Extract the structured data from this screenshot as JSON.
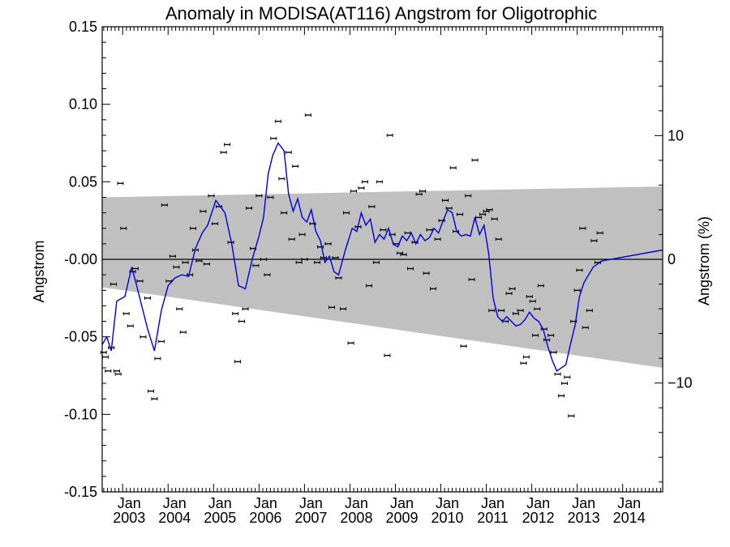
{
  "chart_data": {
    "type": "scatter",
    "title": "Anomaly in MODISA(AT116) Angstrom for Oligotrophic",
    "ylabel": "Angstrom",
    "ylabel_right": "Angstrom (%)",
    "xlim": [
      2002.55,
      2014.88
    ],
    "ylim": [
      -0.15,
      0.15
    ],
    "ylim_right": [
      -18.8,
      18.8
    ],
    "x_tick_years": [
      2003,
      2004,
      2005,
      2006,
      2007,
      2008,
      2009,
      2010,
      2011,
      2012,
      2013,
      2014
    ],
    "x_tick_labels": [
      "Jan",
      "Jan",
      "Jan",
      "Jan",
      "Jan",
      "Jan",
      "Jan",
      "Jan",
      "Jan",
      "Jan",
      "Jan",
      "Jan"
    ],
    "x_year_labels": [
      "2003",
      "2004",
      "2005",
      "2006",
      "2007",
      "2008",
      "2009",
      "2010",
      "2011",
      "2012",
      "2013",
      "2014"
    ],
    "y_ticks": [
      0.15,
      0.1,
      0.05,
      0.0,
      -0.05,
      -0.1,
      -0.15
    ],
    "y_tick_labels": [
      "0.15",
      "0.10",
      "0.05",
      "-0.00",
      "-0.05",
      "-0.10",
      "-0.15"
    ],
    "y_right_ticks": [
      10,
      0,
      -10
    ],
    "y_right_tick_labels": [
      "10",
      "0",
      "−10"
    ],
    "zero_line": 0.0,
    "band": {
      "color": "#c0c0c0",
      "upper": [
        [
          2002.55,
          0.04
        ],
        [
          2014.88,
          0.047
        ]
      ],
      "lower": [
        [
          2002.55,
          -0.018
        ],
        [
          2014.88,
          -0.07
        ]
      ]
    },
    "points": [
      [
        2002.58,
        -0.06
      ],
      [
        2002.62,
        -0.063
      ],
      [
        2002.68,
        -0.072
      ],
      [
        2002.75,
        -0.057
      ],
      [
        2002.8,
        -0.016
      ],
      [
        2002.87,
        -0.072
      ],
      [
        2002.9,
        -0.074
      ],
      [
        2002.95,
        0.049
      ],
      [
        2003.02,
        0.02
      ],
      [
        2003.08,
        -0.035
      ],
      [
        2003.17,
        -0.043
      ],
      [
        2003.22,
        -0.008
      ],
      [
        2003.28,
        -0.006
      ],
      [
        2003.38,
        -0.014
      ],
      [
        2003.45,
        -0.05
      ],
      [
        2003.55,
        -0.025
      ],
      [
        2003.62,
        -0.085
      ],
      [
        2003.7,
        -0.09
      ],
      [
        2003.77,
        -0.064
      ],
      [
        2003.85,
        -0.053
      ],
      [
        2003.92,
        0.035
      ],
      [
        2004.02,
        -0.014
      ],
      [
        2004.1,
        0.002
      ],
      [
        2004.18,
        -0.005
      ],
      [
        2004.25,
        -0.032
      ],
      [
        2004.33,
        -0.047
      ],
      [
        2004.38,
        -0.002
      ],
      [
        2004.48,
        -0.01
      ],
      [
        2004.55,
        0.02
      ],
      [
        2004.6,
        0.006
      ],
      [
        2004.68,
        -0.001
      ],
      [
        2004.77,
        0.031
      ],
      [
        2004.85,
        -0.003
      ],
      [
        2004.95,
        0.041
      ],
      [
        2005.03,
        0.023
      ],
      [
        2005.12,
        0.034
      ],
      [
        2005.22,
        0.069
      ],
      [
        2005.3,
        0.074
      ],
      [
        2005.38,
        0.011
      ],
      [
        2005.48,
        -0.035
      ],
      [
        2005.53,
        -0.066
      ],
      [
        2005.62,
        -0.04
      ],
      [
        2005.7,
        -0.032
      ],
      [
        2005.78,
        0.033
      ],
      [
        2005.87,
        0.007
      ],
      [
        2005.93,
        -0.004
      ],
      [
        2006.0,
        0.041
      ],
      [
        2006.1,
        0.0
      ],
      [
        2006.18,
        -0.01
      ],
      [
        2006.25,
        0.04
      ],
      [
        2006.32,
        0.078
      ],
      [
        2006.42,
        0.089
      ],
      [
        2006.5,
        0.052
      ],
      [
        2006.55,
        0.03
      ],
      [
        2006.65,
        0.069
      ],
      [
        2006.72,
        0.013
      ],
      [
        2006.8,
        0.06
      ],
      [
        2006.88,
        -0.002
      ],
      [
        2006.95,
        0.016
      ],
      [
        2007.0,
        0.0
      ],
      [
        2007.08,
        0.093
      ],
      [
        2007.18,
        0.023
      ],
      [
        2007.28,
        -0.002
      ],
      [
        2007.35,
        0.008
      ],
      [
        2007.42,
        0.001
      ],
      [
        2007.52,
        0.01
      ],
      [
        2007.6,
        -0.031
      ],
      [
        2007.68,
        0.001
      ],
      [
        2007.75,
        -0.012
      ],
      [
        2007.85,
        -0.032
      ],
      [
        2007.92,
        0.03
      ],
      [
        2008.02,
        -0.054
      ],
      [
        2008.08,
        0.044
      ],
      [
        2008.18,
        0.021
      ],
      [
        2008.25,
        0.046
      ],
      [
        2008.33,
        0.05
      ],
      [
        2008.42,
        -0.017
      ],
      [
        2008.48,
        0.034
      ],
      [
        2008.58,
        -0.002
      ],
      [
        2008.65,
        0.05
      ],
      [
        2008.73,
        0.019
      ],
      [
        2008.82,
        -0.062
      ],
      [
        2008.88,
        0.08
      ],
      [
        2008.93,
        0.016
      ],
      [
        2009.02,
        0.01
      ],
      [
        2009.1,
        0.004
      ],
      [
        2009.18,
        0.003
      ],
      [
        2009.27,
        0.017
      ],
      [
        2009.33,
        -0.006
      ],
      [
        2009.43,
        0.011
      ],
      [
        2009.52,
        0.042
      ],
      [
        2009.6,
        0.044
      ],
      [
        2009.68,
        -0.009
      ],
      [
        2009.75,
        0.019
      ],
      [
        2009.83,
        -0.019
      ],
      [
        2009.93,
        0.013
      ],
      [
        2010.02,
        0.025
      ],
      [
        2010.1,
        0.038
      ],
      [
        2010.18,
        0.033
      ],
      [
        2010.27,
        0.059
      ],
      [
        2010.33,
        0.018
      ],
      [
        2010.42,
        0.029
      ],
      [
        2010.5,
        -0.056
      ],
      [
        2010.6,
        0.041
      ],
      [
        2010.68,
        -0.013
      ],
      [
        2010.75,
        0.064
      ],
      [
        2010.83,
        0.027
      ],
      [
        2010.92,
        0.029
      ],
      [
        2011.0,
        0.031
      ],
      [
        2011.07,
        0.032
      ],
      [
        2011.12,
        -0.033
      ],
      [
        2011.18,
        0.026
      ],
      [
        2011.27,
        0.013
      ],
      [
        2011.33,
        -0.033
      ],
      [
        2011.42,
        -0.04
      ],
      [
        2011.5,
        -0.022
      ],
      [
        2011.57,
        -0.019
      ],
      [
        2011.65,
        -0.035
      ],
      [
        2011.75,
        -0.033
      ],
      [
        2011.82,
        -0.067
      ],
      [
        2011.88,
        -0.063
      ],
      [
        2011.95,
        -0.024
      ],
      [
        2012.02,
        -0.027
      ],
      [
        2012.08,
        -0.049
      ],
      [
        2012.12,
        -0.032
      ],
      [
        2012.2,
        -0.017
      ],
      [
        2012.27,
        -0.045
      ],
      [
        2012.33,
        -0.052
      ],
      [
        2012.42,
        -0.049
      ],
      [
        2012.48,
        -0.06
      ],
      [
        2012.57,
        -0.074
      ],
      [
        2012.65,
        -0.088
      ],
      [
        2012.72,
        -0.08
      ],
      [
        2012.78,
        -0.076
      ],
      [
        2012.87,
        -0.101
      ],
      [
        2012.92,
        -0.04
      ],
      [
        2013.0,
        -0.02
      ],
      [
        2013.05,
        -0.007
      ],
      [
        2013.12,
        0.02
      ],
      [
        2013.18,
        -0.044
      ],
      [
        2013.27,
        -0.033
      ],
      [
        2013.37,
        0.012
      ],
      [
        2013.45,
        -0.002
      ],
      [
        2013.5,
        0.017
      ]
    ],
    "line": [
      [
        2002.55,
        -0.055
      ],
      [
        2002.65,
        -0.05
      ],
      [
        2002.75,
        -0.059
      ],
      [
        2002.87,
        -0.027
      ],
      [
        2003.05,
        -0.024
      ],
      [
        2003.2,
        -0.005
      ],
      [
        2003.3,
        -0.016
      ],
      [
        2003.55,
        -0.045
      ],
      [
        2003.7,
        -0.059
      ],
      [
        2003.85,
        -0.033
      ],
      [
        2004.0,
        -0.017
      ],
      [
        2004.15,
        -0.012
      ],
      [
        2004.3,
        -0.01
      ],
      [
        2004.45,
        -0.011
      ],
      [
        2004.6,
        0.007
      ],
      [
        2004.75,
        0.017
      ],
      [
        2004.87,
        0.022
      ],
      [
        2005.05,
        0.038
      ],
      [
        2005.15,
        0.034
      ],
      [
        2005.25,
        0.03
      ],
      [
        2005.4,
        0.01
      ],
      [
        2005.55,
        -0.017
      ],
      [
        2005.7,
        -0.019
      ],
      [
        2005.85,
        0.0
      ],
      [
        2006.0,
        0.015
      ],
      [
        2006.1,
        0.027
      ],
      [
        2006.2,
        0.055
      ],
      [
        2006.3,
        0.067
      ],
      [
        2006.42,
        0.075
      ],
      [
        2006.55,
        0.07
      ],
      [
        2006.65,
        0.042
      ],
      [
        2006.75,
        0.031
      ],
      [
        2006.85,
        0.039
      ],
      [
        2006.95,
        0.027
      ],
      [
        2007.05,
        0.024
      ],
      [
        2007.15,
        0.032
      ],
      [
        2007.25,
        0.018
      ],
      [
        2007.35,
        0.012
      ],
      [
        2007.45,
        -0.002
      ],
      [
        2007.55,
        0.002
      ],
      [
        2007.65,
        -0.008
      ],
      [
        2007.75,
        -0.01
      ],
      [
        2007.9,
        0.006
      ],
      [
        2008.05,
        0.02
      ],
      [
        2008.15,
        0.018
      ],
      [
        2008.25,
        0.03
      ],
      [
        2008.35,
        0.022
      ],
      [
        2008.45,
        0.026
      ],
      [
        2008.55,
        0.011
      ],
      [
        2008.65,
        0.016
      ],
      [
        2008.75,
        0.013
      ],
      [
        2008.85,
        0.02
      ],
      [
        2008.95,
        0.01
      ],
      [
        2009.05,
        0.008
      ],
      [
        2009.15,
        0.015
      ],
      [
        2009.25,
        0.012
      ],
      [
        2009.35,
        0.017
      ],
      [
        2009.45,
        0.01
      ],
      [
        2009.55,
        0.016
      ],
      [
        2009.65,
        0.012
      ],
      [
        2009.75,
        0.014
      ],
      [
        2009.85,
        0.02
      ],
      [
        2009.95,
        0.017
      ],
      [
        2010.05,
        0.025
      ],
      [
        2010.15,
        0.032
      ],
      [
        2010.25,
        0.03
      ],
      [
        2010.35,
        0.018
      ],
      [
        2010.45,
        0.015
      ],
      [
        2010.55,
        0.016
      ],
      [
        2010.65,
        0.015
      ],
      [
        2010.75,
        0.027
      ],
      [
        2010.85,
        0.016
      ],
      [
        2010.95,
        0.022
      ],
      [
        2011.05,
        0.004
      ],
      [
        2011.15,
        -0.025
      ],
      [
        2011.25,
        -0.037
      ],
      [
        2011.35,
        -0.04
      ],
      [
        2011.45,
        -0.037
      ],
      [
        2011.55,
        -0.04
      ],
      [
        2011.65,
        -0.043
      ],
      [
        2011.75,
        -0.042
      ],
      [
        2011.85,
        -0.039
      ],
      [
        2011.95,
        -0.034
      ],
      [
        2012.05,
        -0.038
      ],
      [
        2012.15,
        -0.04
      ],
      [
        2012.25,
        -0.045
      ],
      [
        2012.35,
        -0.056
      ],
      [
        2012.45,
        -0.065
      ],
      [
        2012.55,
        -0.072
      ],
      [
        2012.65,
        -0.07
      ],
      [
        2012.75,
        -0.068
      ],
      [
        2012.85,
        -0.055
      ],
      [
        2012.95,
        -0.043
      ],
      [
        2013.05,
        -0.024
      ],
      [
        2013.15,
        -0.015
      ],
      [
        2013.25,
        -0.01
      ],
      [
        2013.35,
        -0.005
      ],
      [
        2013.45,
        -0.003
      ],
      [
        2013.55,
        -0.001
      ],
      [
        2014.88,
        0.006
      ]
    ],
    "colors": {
      "line": "#0000dd",
      "band": "#c0c0c0",
      "points": "#000000",
      "zero_line": "#000000"
    }
  }
}
